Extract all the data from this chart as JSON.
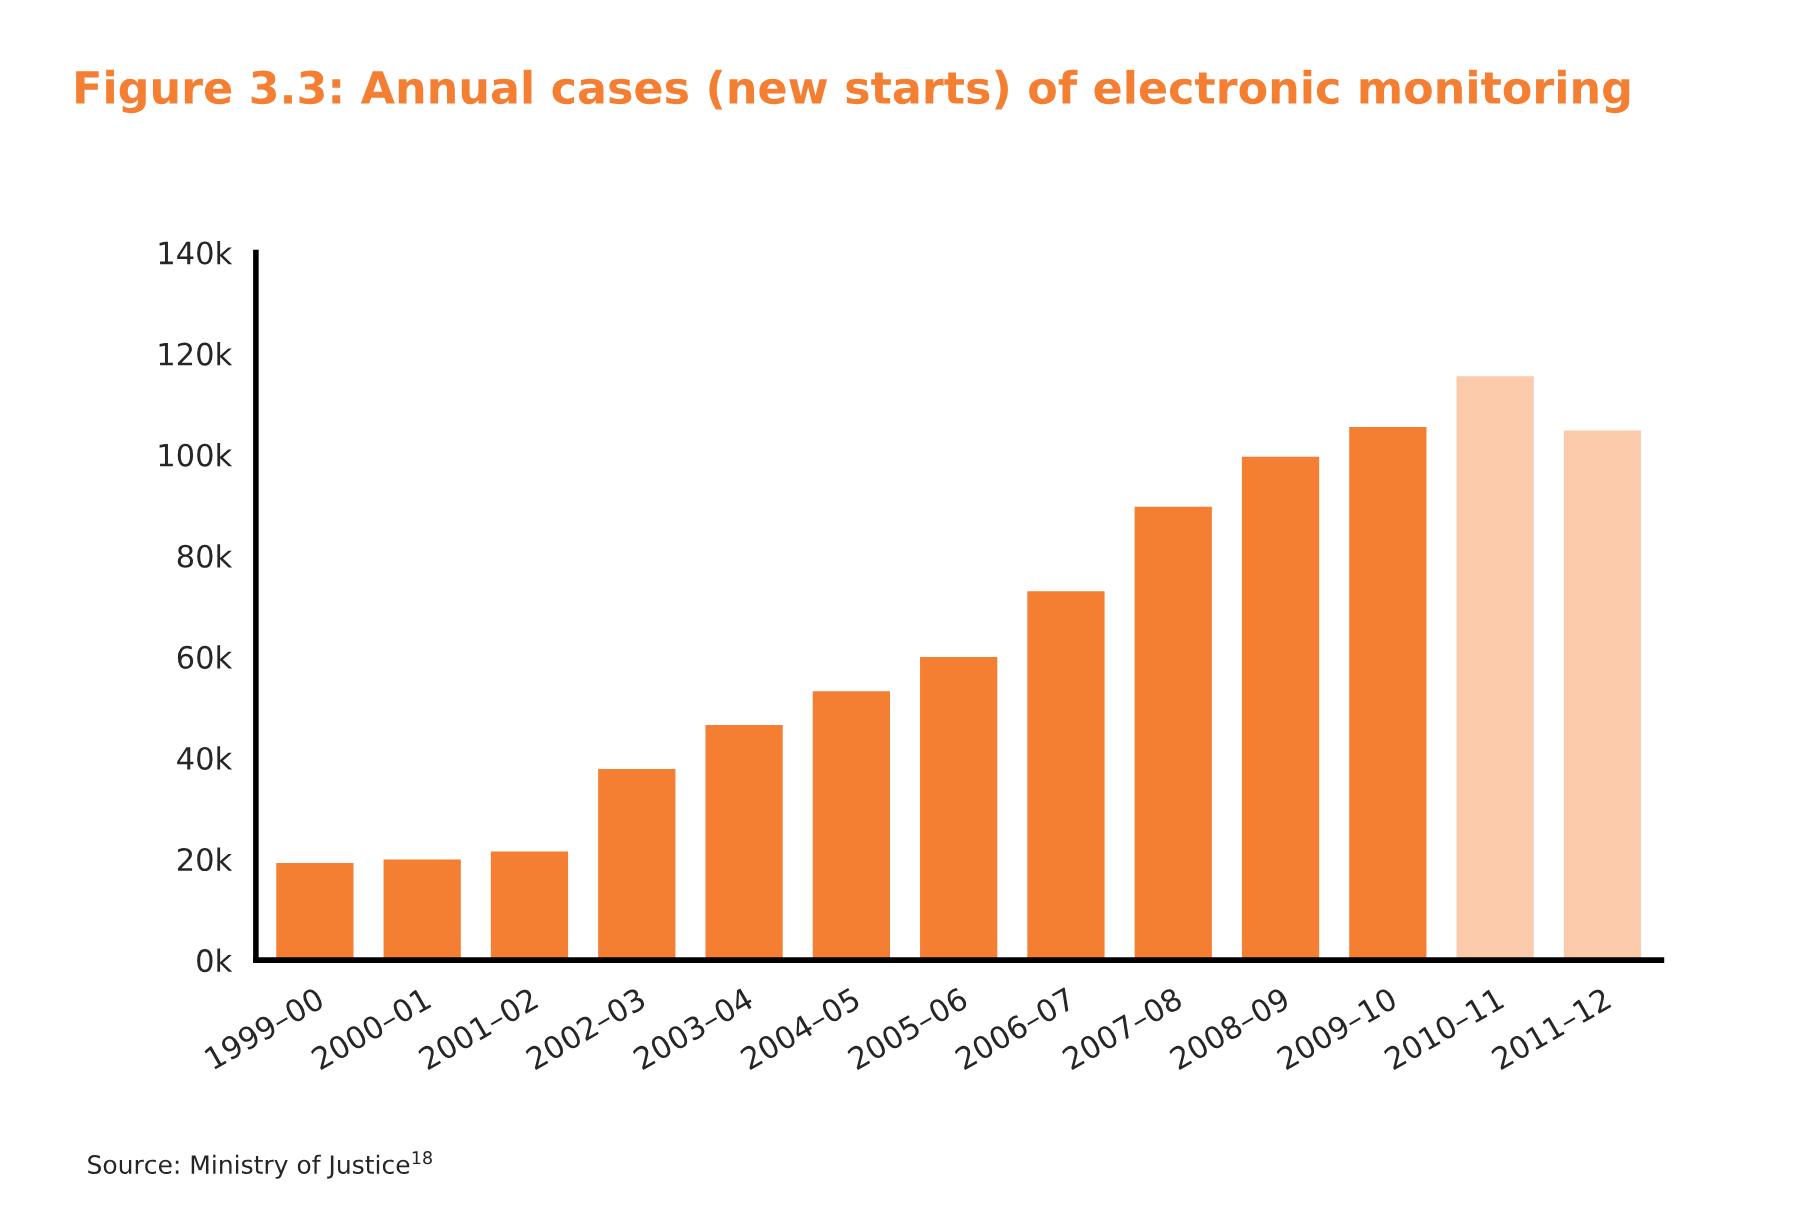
{
  "chart_data": {
    "type": "bar",
    "title": "Figure 3.3: Annual cases (new starts) of electronic monitoring",
    "categories": [
      "1999–00",
      "2000–01",
      "2001–02",
      "2002–03",
      "2003–04",
      "2004–05",
      "2005–06",
      "2006–07",
      "2007–08",
      "2008–09",
      "2009–10",
      "2010–11",
      "2011–12"
    ],
    "values": [
      19200,
      19900,
      21500,
      37800,
      46500,
      53200,
      60000,
      73000,
      89700,
      99600,
      105500,
      115500,
      104800
    ],
    "colors": [
      "#f47f32",
      "#f47f32",
      "#f47f32",
      "#f47f32",
      "#f47f32",
      "#f47f32",
      "#f47f32",
      "#f47f32",
      "#f47f32",
      "#f47f32",
      "#f47f32",
      "#fbcaab",
      "#fbcaab"
    ],
    "ylim": [
      0,
      140000
    ],
    "yticks": [
      {
        "value": 0,
        "label": "0k"
      },
      {
        "value": 20000,
        "label": "20k"
      },
      {
        "value": 40000,
        "label": "40k"
      },
      {
        "value": 60000,
        "label": "60k"
      },
      {
        "value": 80000,
        "label": "80k"
      },
      {
        "value": 100000,
        "label": "100k"
      },
      {
        "value": 120000,
        "label": "120k"
      },
      {
        "value": 140000,
        "label": "140k"
      }
    ],
    "grid": false,
    "annotations": [
      "Source: Ministry of Justice$^{18}$"
    ]
  }
}
